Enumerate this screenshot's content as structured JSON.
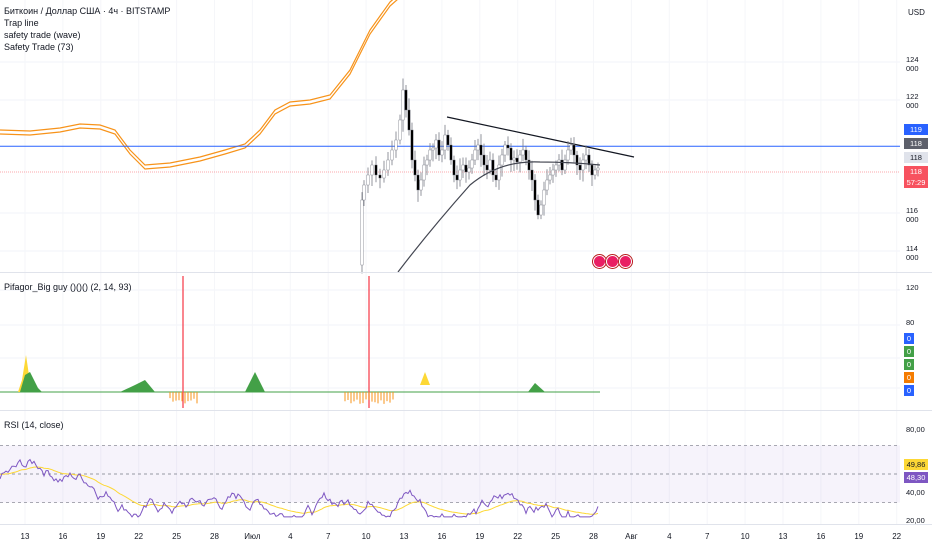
{
  "chart_data": [
    {
      "type": "line",
      "panel": "price",
      "title": "Биткоин / Доллар США · 4ч · BITSTAMP",
      "indicators": [
        "Trap line",
        "safety trade (wave)",
        "Safety Trade (73)"
      ],
      "currency": "USD",
      "y_ticks": [
        "124 000",
        "122 000",
        "116 000",
        "114 000"
      ],
      "price_labels": [
        {
          "text": "119 563",
          "color": "#2962ff"
        },
        {
          "text": "118 379",
          "color": "#5d606b"
        },
        {
          "text": "118 270",
          "color": "#e0e3eb"
        },
        {
          "text": "118 026",
          "color": "#f7525f"
        },
        {
          "text": "57:29",
          "color": "#f7525f"
        }
      ],
      "horizontal_line": 119563,
      "ylim": [
        113200,
        125400
      ]
    },
    {
      "type": "area",
      "panel": "oscillator",
      "title": "Pifagor_Big guy ()()() (2, 14, 93)",
      "y_ticks": [
        "120",
        "80"
      ],
      "value_badges": [
        {
          "text": "0",
          "color": "#2962ff"
        },
        {
          "text": "0",
          "color": "#43a047"
        },
        {
          "text": "0",
          "color": "#43a047"
        },
        {
          "text": "0",
          "color": "#f57c00"
        },
        {
          "text": "0",
          "color": "#2962ff"
        }
      ]
    },
    {
      "type": "line",
      "panel": "rsi",
      "title": "RSI (14, close)",
      "y_ticks": [
        "80,00",
        "40,00",
        "20,00"
      ],
      "levels": [
        70,
        50,
        30
      ],
      "value_badges": [
        {
          "text": "49,86",
          "color": "#fdd835",
          "text_color": "#131722"
        },
        {
          "text": "48,30",
          "color": "#7e57c2",
          "text_color": "#ffffff"
        }
      ],
      "ylim": [
        15,
        90
      ]
    }
  ],
  "x_axis": {
    "labels": [
      "13",
      "16",
      "19",
      "22",
      "25",
      "28",
      "Июл",
      "4",
      "7",
      "10",
      "13",
      "16",
      "19",
      "22",
      "25",
      "28",
      "Авг",
      "4",
      "7",
      "10",
      "13",
      "16",
      "19",
      "22"
    ]
  },
  "colors": {
    "up": "#ffffff",
    "down": "#000000",
    "wick": "#787b86",
    "orange": "#f7931a",
    "sma": "#434651",
    "blue_line": "#2962ff",
    "red_line": "#f7525f",
    "rsi": "#7e57c2",
    "rsi_ma": "#fdd835"
  }
}
